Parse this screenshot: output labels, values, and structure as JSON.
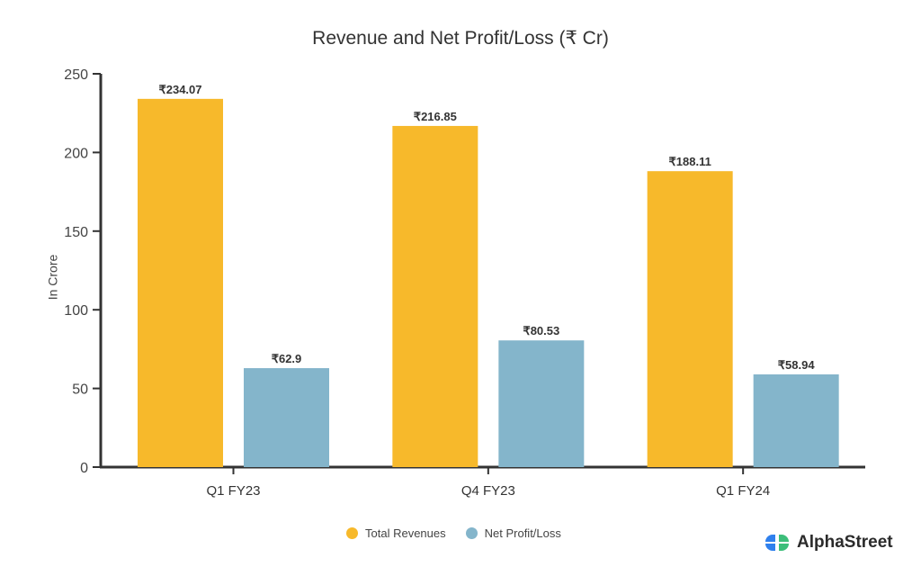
{
  "chart_data": {
    "type": "bar",
    "title": "Revenue and Net Profit/Loss (₹ Cr)",
    "xlabel": "",
    "ylabel": "In Crore",
    "ylim": [
      0,
      250
    ],
    "yticks": [
      0,
      50,
      100,
      150,
      200,
      250
    ],
    "categories": [
      "Q1 FY23",
      "Q4 FY23",
      "Q1 FY24"
    ],
    "series": [
      {
        "name": "Total Revenues",
        "color": "#F7B92B",
        "values": [
          234.07,
          216.85,
          188.11
        ],
        "labels": [
          "₹234.07",
          "₹216.85",
          "₹188.11"
        ]
      },
      {
        "name": "Net Profit/Loss",
        "color": "#84B5CB",
        "values": [
          62.9,
          80.53,
          58.94
        ],
        "labels": [
          "₹62.9",
          "₹80.53",
          "₹58.94"
        ]
      }
    ],
    "legend_position": "bottom",
    "grid": false
  },
  "brand": {
    "name": "AlphaStreet"
  }
}
